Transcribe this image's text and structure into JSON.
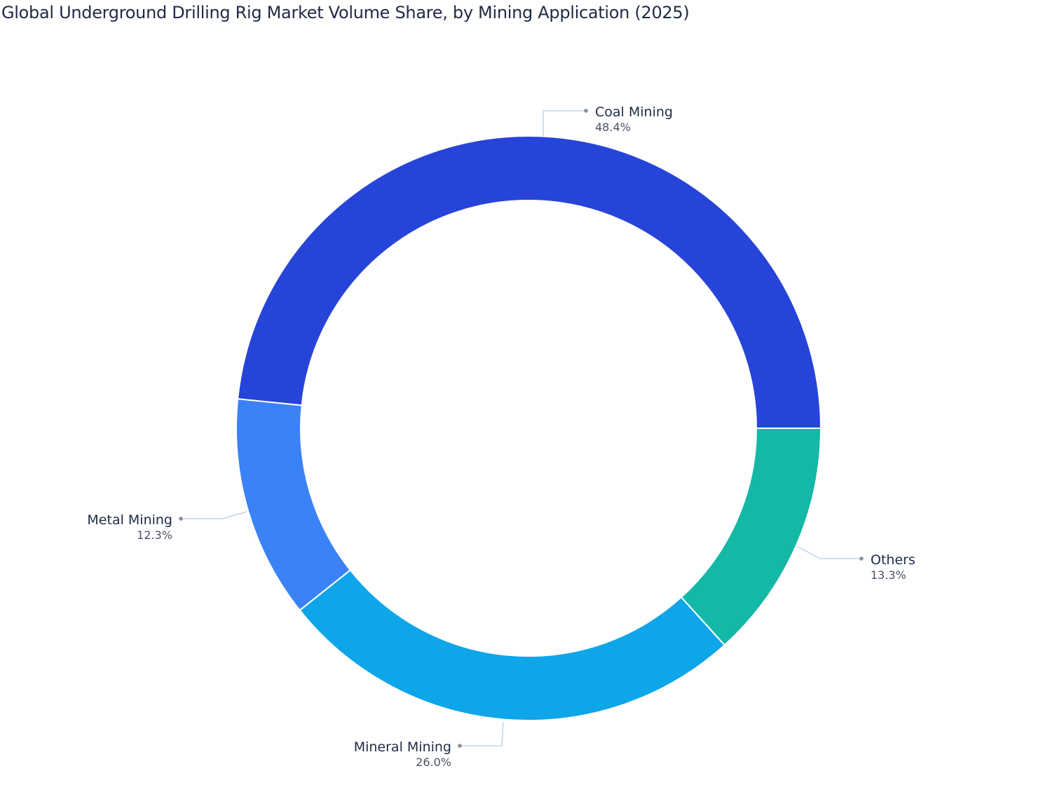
{
  "chart_data": {
    "type": "pie",
    "subtype": "donut",
    "title": "Global Underground Drilling Rig Market Volume Share, by Mining Application (2025)",
    "categories": [
      "Coal Mining",
      "Metal Mining",
      "Mineral Mining",
      "Others"
    ],
    "values": [
      48.4,
      12.3,
      26.0,
      13.3
    ],
    "unit": "%",
    "colors": [
      "#2744d9",
      "#3b82f6",
      "#0ea5e9",
      "#14b8a6"
    ],
    "labels": [
      {
        "name": "Coal Mining",
        "value": "48.4%"
      },
      {
        "name": "Metal Mining",
        "value": "12.3%"
      },
      {
        "name": "Mineral Mining",
        "value": "26.0%"
      },
      {
        "name": "Others",
        "value": "13.3%"
      }
    ],
    "legend": "none",
    "start_angle": "3 o'clock, counterclockwise"
  }
}
